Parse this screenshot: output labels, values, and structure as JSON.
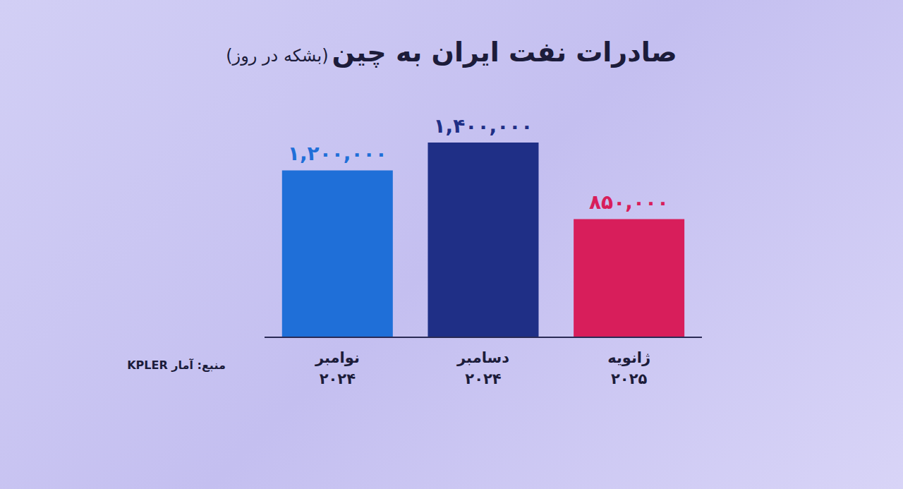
{
  "chart_data": {
    "type": "bar",
    "title": "صادرات نفت ایران به چین",
    "subtitle": "(بشکه در روز)",
    "categories": [
      "نوامبر ۲۰۲۴",
      "دسامبر ۲۰۲۴",
      "ژانویه ۲۰۲۵"
    ],
    "values": [
      1200000,
      1400000,
      850000
    ],
    "value_labels": [
      "۱,۲۰۰,۰۰۰",
      "۱,۴۰۰,۰۰۰",
      "۸۵۰,۰۰۰"
    ],
    "colors": [
      "#1f6fd8",
      "#1f2f86",
      "#d81e5b"
    ],
    "data_labels": true,
    "tick_labels": "x",
    "annotations": [
      "منبع: آمار KPLER"
    ]
  }
}
